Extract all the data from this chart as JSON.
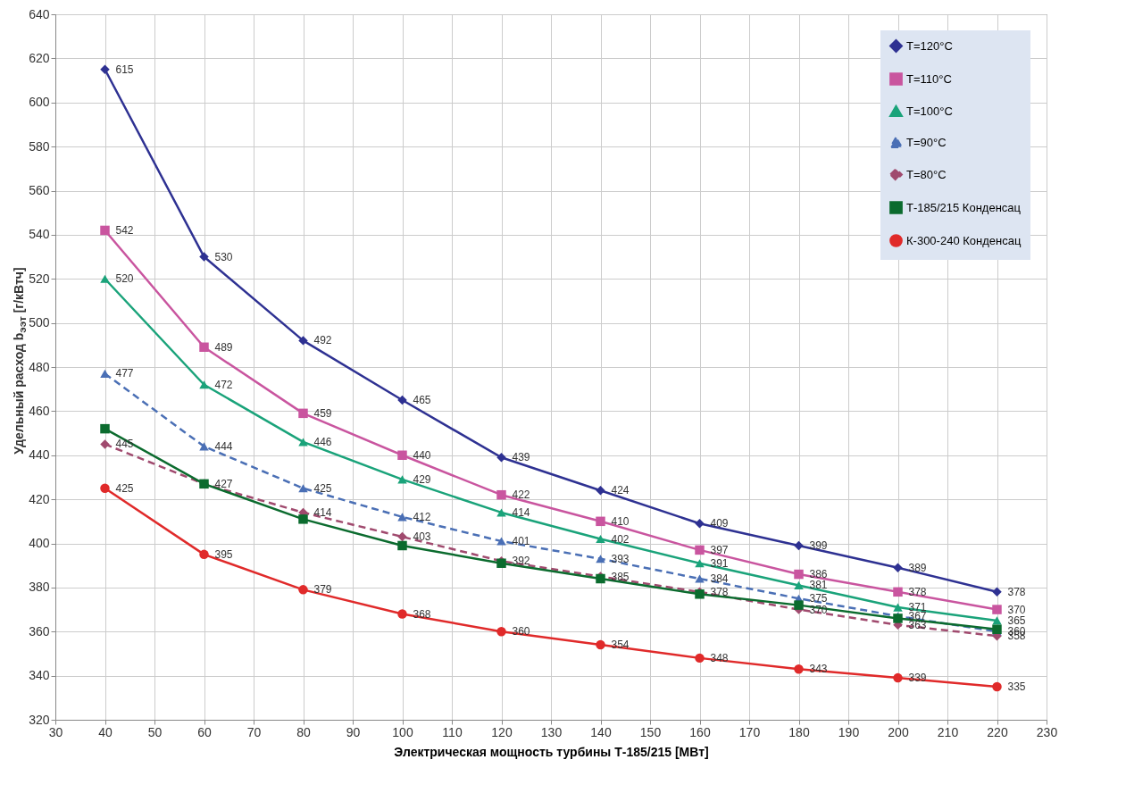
{
  "chart_data": {
    "type": "line",
    "xlabel": "Электрическая мощность турбины Т-185/215 [МВт]",
    "ylabel": "Удельный расход  b$_{ээт}$ [г/кВтч]",
    "x": [
      40,
      60,
      80,
      100,
      120,
      140,
      160,
      180,
      200,
      220
    ],
    "xlim": [
      30,
      230
    ],
    "xticks": [
      30,
      40,
      50,
      60,
      70,
      80,
      90,
      100,
      110,
      120,
      130,
      140,
      150,
      160,
      170,
      180,
      190,
      200,
      210,
      220,
      230
    ],
    "ylim": [
      320,
      640
    ],
    "yticks": [
      320,
      340,
      360,
      380,
      400,
      420,
      440,
      460,
      480,
      500,
      520,
      540,
      560,
      580,
      600,
      620,
      640
    ],
    "grid": true,
    "legend": "top right",
    "series": [
      {
        "name": "Т=120°С",
        "color": "#2e3192",
        "marker": "diamond",
        "line_style": "solid",
        "values": [
          615,
          530,
          492,
          465,
          439,
          424,
          409,
          399,
          389,
          378
        ],
        "value_labels": [
          "615",
          "530",
          "492",
          "465",
          "439",
          "424",
          "409",
          "399",
          "389",
          "378"
        ]
      },
      {
        "name": "Т=110°С",
        "color": "#c9559f",
        "marker": "square",
        "line_style": "solid",
        "values": [
          542,
          489,
          459,
          440,
          422,
          410,
          397,
          386,
          378,
          370
        ],
        "value_labels": [
          "542",
          "489",
          "459",
          "440",
          "422",
          "410",
          "397",
          "386",
          "378",
          "370"
        ]
      },
      {
        "name": "Т=100°С",
        "color": "#1aa37a",
        "marker": "triangle",
        "line_style": "solid",
        "values": [
          520,
          472,
          446,
          429,
          414,
          402,
          391,
          381,
          371,
          365
        ],
        "value_labels": [
          "520",
          "472",
          "446",
          "429",
          "414",
          "402",
          "391",
          "381",
          "371",
          "365"
        ]
      },
      {
        "name": "Т=90°С",
        "color": "#4a6fb5",
        "marker": "triangle",
        "line_style": "dashed",
        "values": [
          477,
          444,
          425,
          412,
          401,
          393,
          384,
          375,
          367,
          360
        ],
        "value_labels": [
          "477",
          "444",
          "425",
          "412",
          "401",
          "393",
          "384",
          "375",
          "367",
          "360"
        ]
      },
      {
        "name": "Т=80°С",
        "color": "#a04a6e",
        "marker": "diamond",
        "line_style": "dashed",
        "values": [
          445,
          427,
          414,
          403,
          392,
          385,
          378,
          370,
          363,
          358
        ],
        "value_labels": [
          "445",
          "427",
          "414",
          "403",
          "392",
          "385",
          "378",
          "370",
          "363",
          "358"
        ]
      },
      {
        "name": "Т-185/215 Конденсац",
        "color": "#0b6b2e",
        "marker": "square",
        "line_style": "solid",
        "values": [
          452,
          427,
          411,
          399,
          391,
          384,
          377,
          372,
          366,
          361
        ]
      },
      {
        "name": "К-300-240 Конденсац",
        "color": "#e02a2a",
        "marker": "circle",
        "line_style": "solid",
        "values": [
          425,
          395,
          379,
          368,
          360,
          354,
          348,
          343,
          339,
          335
        ],
        "value_labels": [
          "425",
          "395",
          "379",
          "368",
          "360",
          "354",
          "348",
          "343",
          "339",
          "335"
        ]
      }
    ]
  }
}
